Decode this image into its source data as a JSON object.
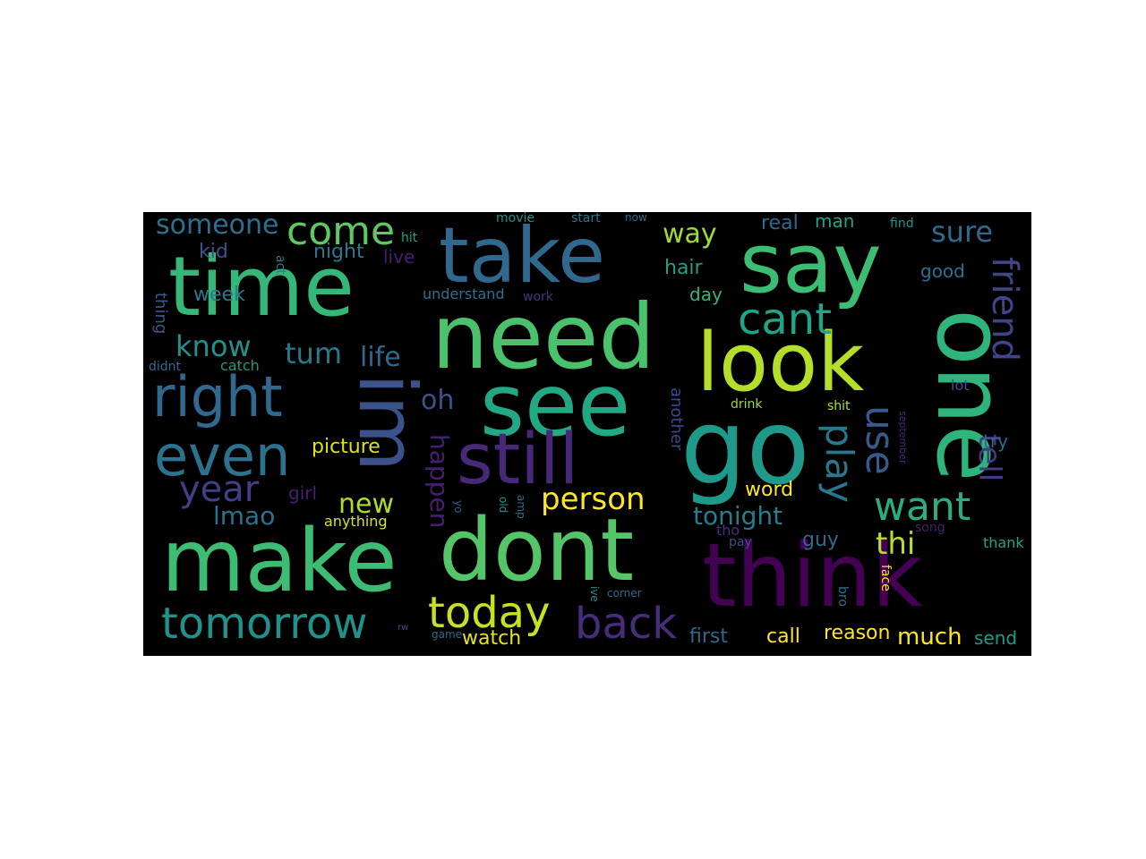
{
  "canvas_background": "#000000",
  "page_background": "#ffffff",
  "words": [
    {
      "text": "time",
      "color": "#35b779"
    },
    {
      "text": "take",
      "color": "#31688e"
    },
    {
      "text": "say",
      "color": "#3dbc74"
    },
    {
      "text": "need",
      "color": "#4ac16d"
    },
    {
      "text": "see",
      "color": "#22a884"
    },
    {
      "text": "look",
      "color": "#b5de2b"
    },
    {
      "text": "one",
      "color": "#2fb47c"
    },
    {
      "text": "go",
      "color": "#1f9a8a"
    },
    {
      "text": "im",
      "color": "#3b528b"
    },
    {
      "text": "still",
      "color": "#482878"
    },
    {
      "text": "right",
      "color": "#31688e"
    },
    {
      "text": "even",
      "color": "#2c728e"
    },
    {
      "text": "make",
      "color": "#3dbc74"
    },
    {
      "text": "dont",
      "color": "#54c568"
    },
    {
      "text": "think",
      "color": "#440154"
    },
    {
      "text": "come",
      "color": "#5ec962"
    },
    {
      "text": "someone",
      "color": "#2d708e"
    },
    {
      "text": "cant",
      "color": "#20a386"
    },
    {
      "text": "friend",
      "color": "#414487"
    },
    {
      "text": "play",
      "color": "#2a788e"
    },
    {
      "text": "use",
      "color": "#38598c"
    },
    {
      "text": "want",
      "color": "#29af7f"
    },
    {
      "text": "tell",
      "color": "#443983"
    },
    {
      "text": "year",
      "color": "#433e85"
    },
    {
      "text": "know",
      "color": "#21918c"
    },
    {
      "text": "tum",
      "color": "#2a788e"
    },
    {
      "text": "life",
      "color": "#31688e"
    },
    {
      "text": "oh",
      "color": "#3b528b"
    },
    {
      "text": "way",
      "color": "#a0da39"
    },
    {
      "text": "sure",
      "color": "#31688e"
    },
    {
      "text": "today",
      "color": "#c8e020"
    },
    {
      "text": "tomorrow",
      "color": "#21918c"
    },
    {
      "text": "back",
      "color": "#472d7b"
    },
    {
      "text": "person",
      "color": "#fde725"
    },
    {
      "text": "happen",
      "color": "#481f70"
    },
    {
      "text": "new",
      "color": "#addc30"
    },
    {
      "text": "lmao",
      "color": "#2c728e"
    },
    {
      "text": "tonight",
      "color": "#287c8e"
    },
    {
      "text": "thi",
      "color": "#b5de2b"
    },
    {
      "text": "guy",
      "color": "#31688e"
    },
    {
      "text": "picture",
      "color": "#dde318"
    },
    {
      "text": "girl",
      "color": "#481f70"
    },
    {
      "text": "anything",
      "color": "#d8e219"
    },
    {
      "text": "word",
      "color": "#fde725"
    },
    {
      "text": "watch",
      "color": "#e5e419"
    },
    {
      "text": "first",
      "color": "#31688e"
    },
    {
      "text": "call",
      "color": "#fde725"
    },
    {
      "text": "reason",
      "color": "#fde725"
    },
    {
      "text": "much",
      "color": "#fde725"
    },
    {
      "text": "send",
      "color": "#1f9a8a"
    },
    {
      "text": "week",
      "color": "#2a788e"
    },
    {
      "text": "kid",
      "color": "#3b528b"
    },
    {
      "text": "night",
      "color": "#2a788e"
    },
    {
      "text": "live",
      "color": "#481f70"
    },
    {
      "text": "hit",
      "color": "#20a386"
    },
    {
      "text": "act",
      "color": "#2a788e"
    },
    {
      "text": "thing",
      "color": "#38598c"
    },
    {
      "text": "didnt",
      "color": "#31688e"
    },
    {
      "text": "catch",
      "color": "#1f9a8a"
    },
    {
      "text": "understand",
      "color": "#2c728e"
    },
    {
      "text": "work",
      "color": "#46327e"
    },
    {
      "text": "movie",
      "color": "#21918c"
    },
    {
      "text": "start",
      "color": "#2a788e"
    },
    {
      "text": "now",
      "color": "#31688e"
    },
    {
      "text": "real",
      "color": "#31688e"
    },
    {
      "text": "man",
      "color": "#20a386"
    },
    {
      "text": "find",
      "color": "#21918c"
    },
    {
      "text": "hair",
      "color": "#1fa188"
    },
    {
      "text": "day",
      "color": "#35b779"
    },
    {
      "text": "good",
      "color": "#2c728e"
    },
    {
      "text": "lot",
      "color": "#3b528b"
    },
    {
      "text": "another",
      "color": "#3e4989"
    },
    {
      "text": "drink",
      "color": "#9bd93c"
    },
    {
      "text": "shit",
      "color": "#b5de2b"
    },
    {
      "text": "try",
      "color": "#31688e"
    },
    {
      "text": "thank",
      "color": "#20a386"
    },
    {
      "text": "song",
      "color": "#481f70"
    },
    {
      "text": "pay",
      "color": "#3b528b"
    },
    {
      "text": "tho",
      "color": "#472d7b"
    },
    {
      "text": "face",
      "color": "#fde725"
    },
    {
      "text": "bro",
      "color": "#2c728e"
    },
    {
      "text": "ive",
      "color": "#21918c"
    },
    {
      "text": "corner",
      "color": "#31688e"
    },
    {
      "text": "game",
      "color": "#31688e"
    },
    {
      "text": "rw",
      "color": "#3b528b"
    },
    {
      "text": "yo",
      "color": "#38598c"
    },
    {
      "text": "old",
      "color": "#21918c"
    },
    {
      "text": "amp",
      "color": "#2c728e"
    },
    {
      "text": "september",
      "color": "#482878"
    }
  ]
}
